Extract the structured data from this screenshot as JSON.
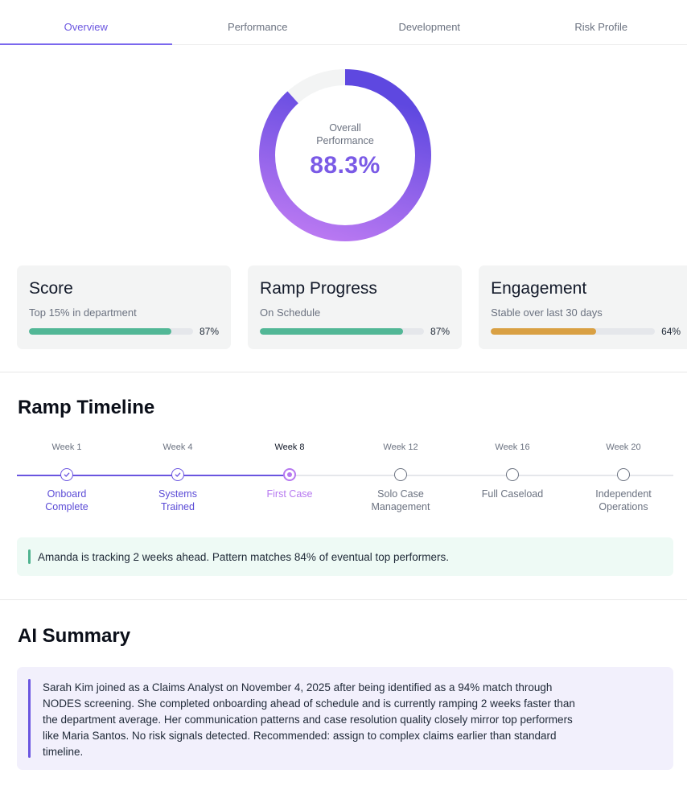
{
  "tabs": [
    {
      "label": "Overview",
      "active": true
    },
    {
      "label": "Performance",
      "active": false
    },
    {
      "label": "Development",
      "active": false
    },
    {
      "label": "Risk Profile",
      "active": false
    }
  ],
  "overall": {
    "label_line1": "Overall",
    "label_line2": "Performance",
    "value": "88.3%",
    "percent": 88.3,
    "colors": {
      "start": "#c07cf3",
      "end": "#5e48e0",
      "track": "#f3f4f4"
    }
  },
  "cards": [
    {
      "title": "Score",
      "subtitle": "Top 15% in department",
      "percent_label": "87%",
      "percent": 87,
      "color": "#52b796"
    },
    {
      "title": "Ramp Progress",
      "subtitle": "On Schedule",
      "percent_label": "87%",
      "percent": 87,
      "color": "#52b796"
    },
    {
      "title": "Engagement",
      "subtitle": "Stable over last 30 days",
      "percent_label": "64%",
      "percent": 64,
      "color": "#d9a043"
    }
  ],
  "ramp_timeline": {
    "title": "Ramp Timeline",
    "steps": [
      {
        "week": "Week 1",
        "label_line1": "Onboard",
        "label_line2": "Complete",
        "status": "done"
      },
      {
        "week": "Week 4",
        "label_line1": "Systems",
        "label_line2": "Trained",
        "status": "done"
      },
      {
        "week": "Week 8",
        "label_line1": "First Case",
        "label_line2": "",
        "status": "current"
      },
      {
        "week": "Week 12",
        "label_line1": "Solo Case",
        "label_line2": "Management",
        "status": "pending"
      },
      {
        "week": "Week 16",
        "label_line1": "Full Caseload",
        "label_line2": "",
        "status": "pending"
      },
      {
        "week": "Week 20",
        "label_line1": "Independent",
        "label_line2": "Operations",
        "status": "pending"
      }
    ],
    "insight": "Amanda is tracking 2 weeks ahead. Pattern matches 84% of eventual top performers."
  },
  "ai_summary": {
    "title": "AI Summary",
    "lines": [
      "Sarah Kim joined as a Claims Analyst on November 4, 2025 after being  identified as a 94% match through",
      "NODES screening. She completed  onboarding ahead of schedule and is currently ramping 2 weeks faster  than",
      "the department average. Her communication patterns and case  resolution quality closely mirror top performers",
      "like Maria Santos. No  risk signals detected. Recommended: assign to complex claims earlier  than standard",
      "timeline."
    ]
  }
}
